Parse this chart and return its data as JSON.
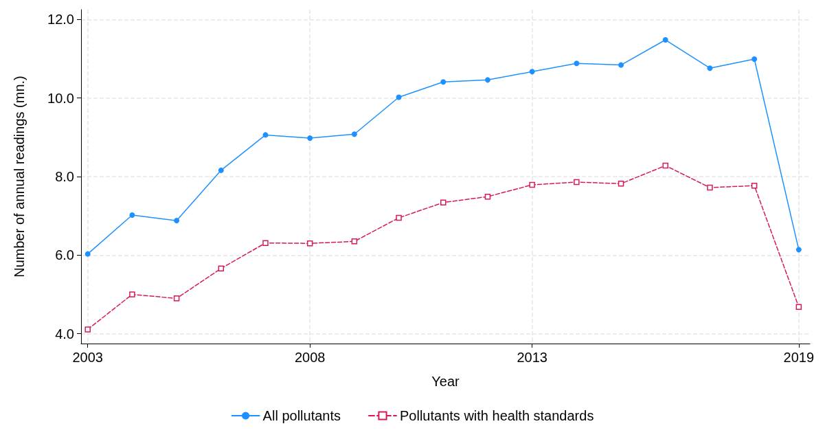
{
  "chart_data": {
    "type": "line",
    "xlabel": "Year",
    "ylabel": "Number of annual readings (mn.)",
    "x": [
      2003,
      2004,
      2005,
      2006,
      2007,
      2008,
      2009,
      2010,
      2011,
      2012,
      2013,
      2014,
      2015,
      2016,
      2017,
      2018,
      2019
    ],
    "series": [
      {
        "name": "All pollutants",
        "color": "#1e90ff",
        "marker": "circle",
        "line_style": "solid",
        "values": [
          6.03,
          7.02,
          6.88,
          8.16,
          9.06,
          8.98,
          9.08,
          10.02,
          10.41,
          10.46,
          10.67,
          10.88,
          10.84,
          11.48,
          10.76,
          10.99,
          6.14
        ]
      },
      {
        "name": "Pollutants with health standards",
        "color": "#d6195a",
        "marker": "square",
        "line_style": "dashed",
        "values": [
          4.11,
          5.0,
          4.9,
          5.66,
          6.31,
          6.3,
          6.35,
          6.95,
          7.34,
          7.49,
          7.79,
          7.86,
          7.82,
          8.28,
          7.72,
          7.77,
          4.68
        ]
      }
    ],
    "xlim": [
      2002.85,
      2019.25
    ],
    "xticks": [
      2003,
      2008,
      2013,
      2019
    ],
    "ylim": [
      3.75,
      12.25
    ],
    "yticks": [
      {
        "value": 4,
        "label": "4.0"
      },
      {
        "value": 6,
        "label": "6.0"
      },
      {
        "value": 8,
        "label": "8.0"
      },
      {
        "value": 10,
        "label": "10.0"
      },
      {
        "value": 12,
        "label": "12.0"
      }
    ],
    "grid": true,
    "legend": "bottom"
  }
}
